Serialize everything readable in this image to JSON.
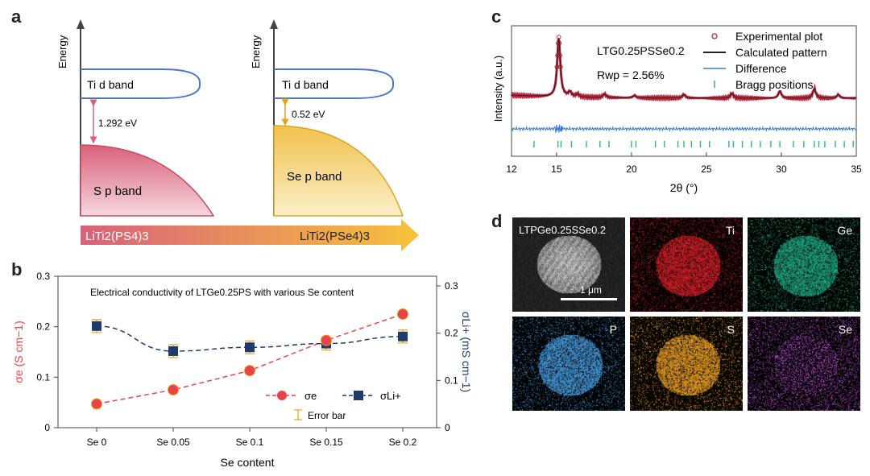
{
  "panel_labels": {
    "a": "a",
    "b": "b",
    "c": "c",
    "d": "d"
  },
  "panel_a": {
    "axis_label": "Energy",
    "left": {
      "d_band": "Ti d band",
      "p_band": "S p band",
      "gap": "1.292 eV",
      "p_band_color": "#d9607a"
    },
    "right": {
      "d_band": "Ti d band",
      "p_band": "Se p band",
      "gap": "0.52 eV",
      "p_band_color": "#f2c14e"
    },
    "d_band_color": "#4a78c8",
    "arrow_left": "LiTi2(PS4)3",
    "arrow_right": "LiTi2(PSe4)3"
  },
  "panel_c": {
    "formula": "LTG0.25PSSe0.2",
    "rwp": "Rwp = 2.56%",
    "legend": [
      "Experimental plot",
      "Calculated pattern",
      "Difference",
      "Bragg positions"
    ],
    "colors": {
      "experimental": "#c0273d",
      "calculated": "#222222",
      "difference": "#3a7fd5",
      "bragg": "#2fb38a"
    }
  },
  "panel_d": {
    "sem_label": "LTPGe0.25SSe0.2",
    "scale_bar": "1 μm",
    "maps": [
      {
        "name": "Ti",
        "color": "#e0202a"
      },
      {
        "name": "Ge",
        "color": "#1fb38a"
      },
      {
        "name": "P",
        "color": "#4aa3e8"
      },
      {
        "name": "S",
        "color": "#f5a623"
      },
      {
        "name": "Se",
        "color": "#b24fc9"
      }
    ]
  },
  "chart_data": [
    {
      "type": "line",
      "title": "Electrical conductivity of LTGe0.25PS with various Se content",
      "xlabel": "Se content",
      "ylabel": "σe (S cm−1)",
      "y2label": "σLi+ (mS cm−1)",
      "categories": [
        "Se 0",
        "Se 0.05",
        "Se 0.1",
        "Se 0.15",
        "Se 0.2"
      ],
      "ylim": [
        0,
        0.3
      ],
      "y2lim": [
        0,
        0.3
      ],
      "yticks": [
        "0",
        "0.1",
        "0.2",
        "0.3"
      ],
      "y2ticks": [
        "0",
        "0.1",
        "0.2",
        "0.3"
      ],
      "series": [
        {
          "name": "σe",
          "axis": "left",
          "values": [
            0.047,
            0.075,
            0.113,
            0.173,
            0.225
          ],
          "color": "#e8424a"
        },
        {
          "name": "σLi+",
          "axis": "right",
          "values": [
            0.215,
            0.162,
            0.17,
            0.178,
            0.193
          ],
          "color": "#1f3a6b"
        }
      ],
      "legend": [
        "σe",
        "σLi+",
        "Error bar"
      ],
      "error_bar_color": "#e8a317"
    },
    {
      "type": "line",
      "xlabel": "2θ (°)",
      "ylabel": "Intensity (a.u.)",
      "xlim": [
        12,
        35
      ],
      "xticks": [
        "12",
        "15",
        "20",
        "25",
        "30",
        "35"
      ],
      "peaks": [
        {
          "x": 15.15,
          "intensity": 1.0
        },
        {
          "x": 15.9,
          "intensity": 0.08
        },
        {
          "x": 16.4,
          "intensity": 0.05
        },
        {
          "x": 18.2,
          "intensity": 0.06
        },
        {
          "x": 20.2,
          "intensity": 0.04
        },
        {
          "x": 23.5,
          "intensity": 0.06
        },
        {
          "x": 26.7,
          "intensity": 0.08
        },
        {
          "x": 29.9,
          "intensity": 0.12
        },
        {
          "x": 32.2,
          "intensity": 0.16
        },
        {
          "x": 33.8,
          "intensity": 0.06
        }
      ],
      "bragg_positions": [
        13.5,
        15.1,
        15.3,
        16.0,
        17.0,
        17.9,
        18.5,
        20.0,
        20.3,
        21.6,
        22.2,
        23.1,
        23.5,
        24.0,
        24.6,
        25.2,
        26.5,
        26.8,
        27.4,
        28.0,
        28.6,
        29.3,
        29.9,
        30.8,
        31.5,
        32.2,
        32.5,
        32.9,
        33.6,
        34.2,
        34.8
      ],
      "legend": [
        "Experimental plot",
        "Calculated pattern",
        "Difference",
        "Bragg positions"
      ]
    }
  ]
}
